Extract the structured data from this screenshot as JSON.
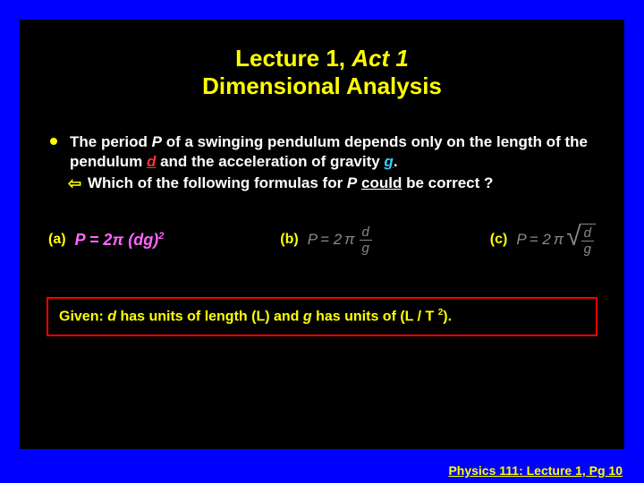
{
  "title": {
    "line1_a": "Lecture 1, ",
    "line1_b": "Act 1",
    "line2": "Dimensional Analysis"
  },
  "body": {
    "t1": "The period ",
    "P": "P",
    "t2": " of a swinging pendulum depends only on the length of the pendulum ",
    "d": "d",
    "t3": " and the acceleration of gravity ",
    "g": "g",
    "t4": ".",
    "sub_t1": "Which of the following formulas for ",
    "sub_P": "P",
    "sub_t2": " ",
    "sub_could": "could",
    "sub_t3": " be correct ?"
  },
  "options": {
    "a_label": "(a)",
    "a_formula_pre": "P = 2",
    "a_formula_pi": "π",
    "a_formula_mid": " (dg)",
    "a_formula_exp": "2",
    "b_label": "(b)",
    "b_P": "P",
    "b_eq": " = 2",
    "b_pi": "π",
    "b_num": "d",
    "b_den": "g",
    "c_label": "(c)",
    "c_P": "P",
    "c_eq": " = 2",
    "c_pi": "π",
    "c_num": "d",
    "c_den": "g"
  },
  "given": {
    "t1": "Given:  ",
    "d": "d",
    "t2": " has units of length (L) and  ",
    "g": "g",
    "t3": " has units of (L / T ",
    "exp": "2",
    "t4": ")."
  },
  "footer": "Physics 111: Lecture 1, Pg 10",
  "colors": {
    "frame": "#0000ff",
    "slide_bg": "#000000",
    "title": "#ffff00",
    "body_text": "#ffffff",
    "d_var": "#ff3333",
    "g_var": "#33ccff",
    "formula_a": "#ff66ff",
    "formula_grey": "#888888",
    "box_border": "#ff0000",
    "footer": "#ffff00"
  }
}
